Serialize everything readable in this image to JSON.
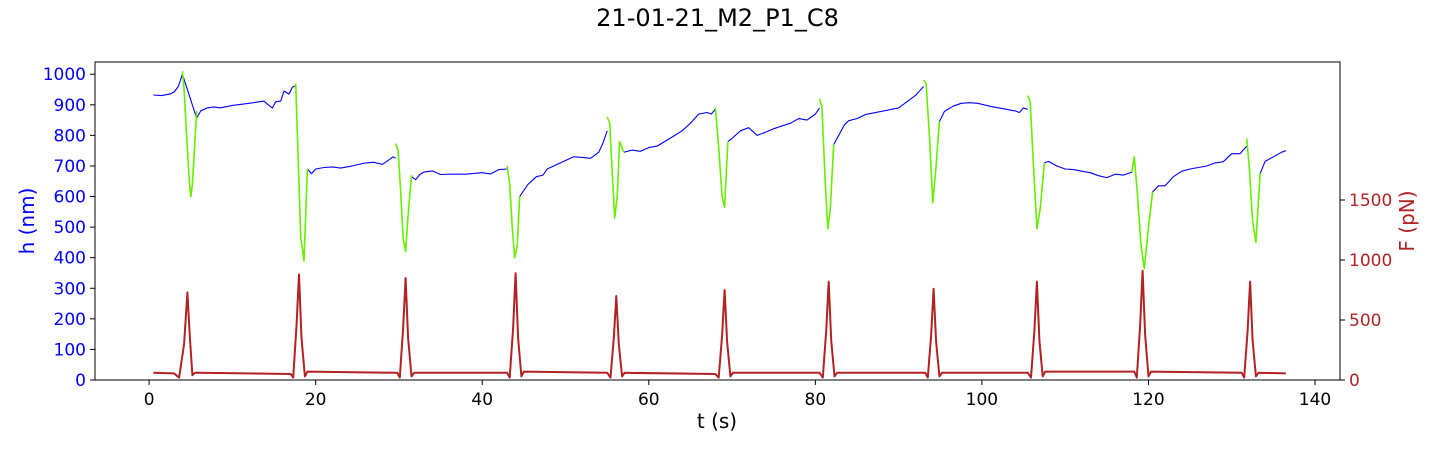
{
  "chart_data": {
    "type": "line",
    "title": "21-01-21_M2_P1_C8",
    "xlabel": "t (s)",
    "ylabel_left": "h (nm)",
    "ylabel_right": "F (pN)",
    "xlim": [
      -6.5,
      143
    ],
    "ylim_left": [
      0,
      1040
    ],
    "ylim_right": [
      0,
      2650
    ],
    "xticks": [
      0,
      20,
      40,
      60,
      80,
      100,
      120,
      140
    ],
    "yticks_left": [
      0,
      100,
      200,
      300,
      400,
      500,
      600,
      700,
      800,
      900,
      1000
    ],
    "yticks_right": [
      0,
      500,
      1000,
      1500
    ],
    "colors": {
      "h": "#0000ff",
      "h_compression": "#66ee00",
      "force": "#b22222",
      "left_axis": "#0000ff",
      "right_axis": "#b22222"
    },
    "grid": false,
    "series": [
      {
        "axis": "left",
        "color": "#0000ff",
        "x": [
          0.5,
          1.5,
          2.5,
          3.0,
          3.5,
          4.0,
          5.7,
          6.2,
          7.0,
          7.8,
          8.5,
          10,
          12,
          13.8,
          14.3,
          14.8,
          15.2,
          15.8,
          16.2,
          16.8,
          17.2,
          17.6
        ],
        "y": [
          932,
          930,
          935,
          942,
          960,
          1000,
          857,
          880,
          890,
          893,
          890,
          898,
          905,
          912,
          900,
          890,
          910,
          912,
          945,
          935,
          958,
          962
        ]
      },
      {
        "axis": "left",
        "color": "#0000ff",
        "x": [
          19.0,
          19.5,
          20.0,
          21,
          22,
          23,
          24,
          26,
          27,
          28,
          28.8,
          29.3,
          29.6
        ],
        "y": [
          690,
          675,
          690,
          695,
          697,
          693,
          698,
          710,
          712,
          705,
          720,
          730,
          725
        ]
      },
      {
        "axis": "left",
        "color": "#0000ff",
        "x": [
          31.5,
          32.0,
          32.5,
          33,
          34,
          35,
          36,
          38,
          40,
          41,
          42,
          43.0
        ],
        "y": [
          665,
          655,
          672,
          680,
          684,
          672,
          673,
          673,
          678,
          674,
          688,
          690
        ]
      },
      {
        "axis": "left",
        "color": "#0000ff",
        "x": [
          44.5,
          45.5,
          46.5,
          47.3,
          47.8,
          50,
          51,
          52,
          53,
          54,
          54.5,
          55.0
        ],
        "y": [
          600,
          640,
          665,
          670,
          690,
          718,
          730,
          728,
          725,
          745,
          775,
          815
        ]
      },
      {
        "axis": "left",
        "color": "#0000ff",
        "x": [
          57.0,
          58.0,
          59.0,
          60.0,
          61.0,
          63,
          64,
          65,
          65.5,
          66,
          67,
          67.5,
          68.0
        ],
        "y": [
          745,
          752,
          748,
          760,
          765,
          798,
          815,
          840,
          855,
          870,
          875,
          870,
          885
        ]
      },
      {
        "axis": "left",
        "color": "#0000ff",
        "x": [
          69.5,
          70,
          71,
          72,
          73,
          74,
          75,
          77,
          78,
          79,
          80,
          80.5
        ],
        "y": [
          780,
          790,
          815,
          825,
          800,
          810,
          822,
          840,
          855,
          850,
          870,
          890
        ]
      },
      {
        "axis": "left",
        "color": "#0000ff",
        "x": [
          82.2,
          82.5,
          83.5,
          84,
          85,
          86,
          90,
          92,
          93.0
        ],
        "y": [
          770,
          785,
          835,
          848,
          855,
          868,
          890,
          930,
          960
        ]
      },
      {
        "axis": "left",
        "color": "#0000ff",
        "x": [
          94.9,
          95.5,
          96.5,
          97.5,
          98.5,
          99.5,
          101,
          103,
          104,
          104.5,
          105,
          105.5
        ],
        "y": [
          845,
          878,
          895,
          905,
          907,
          905,
          895,
          885,
          880,
          875,
          890,
          885
        ]
      },
      {
        "axis": "left",
        "color": "#0000ff",
        "x": [
          107.5,
          108,
          109,
          110,
          111,
          112,
          113,
          114,
          115,
          116,
          117,
          118
        ],
        "y": [
          710,
          715,
          700,
          690,
          688,
          683,
          678,
          668,
          662,
          673,
          670,
          680
        ]
      },
      {
        "axis": "left",
        "color": "#0000ff",
        "x": [
          120.5,
          121.2,
          122,
          123,
          124,
          125,
          127,
          128,
          129,
          130,
          131,
          131.8
        ],
        "y": [
          615,
          635,
          635,
          665,
          683,
          690,
          700,
          710,
          714,
          740,
          740,
          765
        ]
      },
      {
        "axis": "left",
        "color": "#0000ff",
        "x": [
          133.4,
          134,
          135,
          136,
          136.5
        ],
        "y": [
          675,
          715,
          730,
          745,
          750
        ]
      },
      {
        "axis": "left",
        "color": "#66ee00",
        "x": [
          4.0,
          4.2,
          4.5,
          4.8,
          5.0,
          5.2,
          5.5,
          5.7
        ],
        "y": [
          1010,
          950,
          800,
          660,
          600,
          640,
          780,
          880
        ]
      },
      {
        "axis": "left",
        "color": "#66ee00",
        "x": [
          17.6,
          17.9,
          18.2,
          18.6,
          19.0
        ],
        "y": [
          970,
          720,
          470,
          390,
          690
        ]
      },
      {
        "axis": "left",
        "color": "#66ee00",
        "x": [
          29.6,
          29.9,
          30.2,
          30.5,
          30.8,
          31.1,
          31.5
        ],
        "y": [
          773,
          750,
          620,
          465,
          420,
          540,
          670
        ]
      },
      {
        "axis": "left",
        "color": "#66ee00",
        "x": [
          43.0,
          43.3,
          43.6,
          43.9,
          44.2,
          44.5
        ],
        "y": [
          700,
          640,
          500,
          400,
          440,
          600
        ]
      },
      {
        "axis": "left",
        "color": "#66ee00",
        "x": [
          55.0,
          55.3,
          55.6,
          55.9,
          56.2,
          56.5,
          57.0
        ],
        "y": [
          860,
          840,
          680,
          530,
          600,
          780,
          745
        ]
      },
      {
        "axis": "left",
        "color": "#66ee00",
        "x": [
          68.0,
          68.4,
          68.8,
          69.1,
          69.5
        ],
        "y": [
          890,
          760,
          600,
          565,
          780
        ]
      },
      {
        "axis": "left",
        "color": "#66ee00",
        "x": [
          80.5,
          80.8,
          81.2,
          81.5,
          81.8,
          82.2
        ],
        "y": [
          920,
          890,
          640,
          495,
          560,
          770
        ]
      },
      {
        "axis": "left",
        "color": "#66ee00",
        "x": [
          93.0,
          93.3,
          93.7,
          94.1,
          94.5,
          94.9
        ],
        "y": [
          980,
          970,
          800,
          580,
          700,
          845
        ]
      },
      {
        "axis": "left",
        "color": "#66ee00",
        "x": [
          105.5,
          105.8,
          106.2,
          106.6,
          107.0,
          107.5
        ],
        "y": [
          930,
          910,
          700,
          495,
          560,
          710
        ]
      },
      {
        "axis": "left",
        "color": "#66ee00",
        "x": [
          118.0,
          118.3,
          118.7,
          119.1,
          119.5,
          120.0,
          120.5
        ],
        "y": [
          680,
          730,
          600,
          440,
          365,
          500,
          615
        ]
      },
      {
        "axis": "left",
        "color": "#66ee00",
        "x": [
          131.8,
          132.1,
          132.5,
          132.9,
          133.4
        ],
        "y": [
          790,
          700,
          520,
          450,
          675
        ]
      },
      {
        "axis": "right",
        "color": "#b22222",
        "x": [
          0.5,
          3.0,
          3.6,
          4.2,
          4.6,
          4.9,
          5.2,
          5.5,
          5.8,
          17.0,
          17.3,
          17.7,
          18.0,
          18.3,
          18.7,
          19.0,
          29.8,
          30.1,
          30.5,
          30.8,
          31.1,
          31.5,
          31.8,
          43.0,
          43.3,
          43.7,
          44.0,
          44.3,
          44.7,
          45.0,
          55.0,
          55.4,
          55.8,
          56.1,
          56.4,
          56.8,
          57.1,
          68.0,
          68.4,
          68.8,
          69.1,
          69.4,
          69.8,
          70.1,
          80.5,
          80.9,
          81.3,
          81.6,
          81.9,
          82.3,
          82.6,
          93.2,
          93.5,
          93.9,
          94.2,
          94.5,
          94.9,
          95.2,
          105.5,
          105.9,
          106.3,
          106.6,
          106.9,
          107.3,
          107.6,
          118.3,
          118.6,
          119.0,
          119.3,
          119.6,
          120.0,
          120.3,
          131.2,
          131.5,
          131.9,
          132.2,
          132.5,
          132.9,
          133.2,
          136.5
        ],
        "y": [
          60,
          55,
          20,
          300,
          730,
          350,
          40,
          60,
          60,
          50,
          20,
          450,
          880,
          350,
          30,
          70,
          60,
          20,
          430,
          850,
          350,
          30,
          60,
          60,
          20,
          430,
          890,
          350,
          30,
          70,
          60,
          20,
          350,
          700,
          300,
          30,
          60,
          50,
          20,
          370,
          750,
          320,
          30,
          60,
          60,
          20,
          410,
          820,
          330,
          30,
          60,
          60,
          20,
          370,
          760,
          320,
          30,
          60,
          60,
          20,
          410,
          820,
          330,
          30,
          70,
          70,
          20,
          450,
          910,
          380,
          30,
          70,
          60,
          20,
          410,
          820,
          330,
          30,
          60,
          55
        ]
      }
    ]
  }
}
